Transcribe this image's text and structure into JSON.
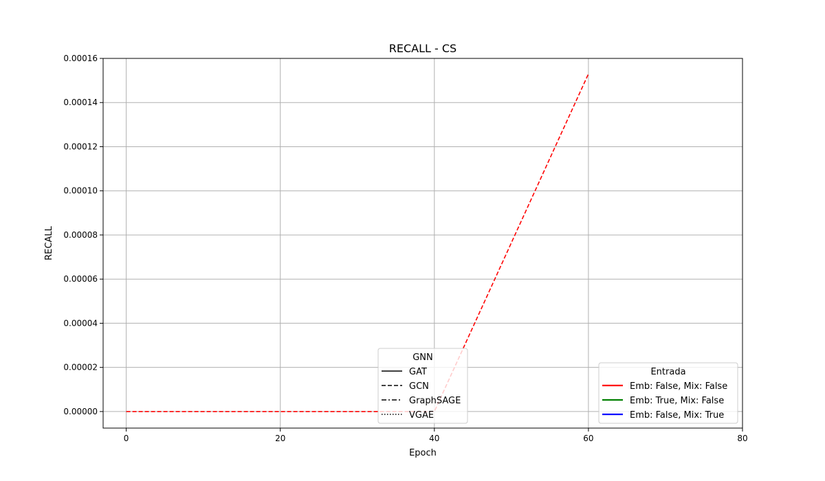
{
  "chart_data": {
    "type": "line",
    "title": "RECALL - CS",
    "xlabel": "Epoch",
    "ylabel": "RECALL",
    "xlim": [
      -3,
      80
    ],
    "ylim": [
      -7.5e-06,
      0.00016
    ],
    "xticks": [
      0,
      20,
      40,
      60,
      80
    ],
    "xtick_labels": [
      "0",
      "20",
      "40",
      "60",
      "80"
    ],
    "yticks": [
      0,
      2e-05,
      4e-05,
      6e-05,
      8e-05,
      0.0001,
      0.00012,
      0.00014,
      0.00016
    ],
    "ytick_labels": [
      "0.00000",
      "0.00002",
      "0.00004",
      "0.00006",
      "0.00008",
      "0.00010",
      "0.00012",
      "0.00014",
      "0.00016"
    ],
    "grid": true,
    "series": [
      {
        "name": "GCN — Emb: False, Mix: False",
        "color": "#ff0000",
        "dash": "dashed",
        "x": [
          0,
          40,
          60
        ],
        "y": [
          0,
          0,
          0.000153
        ]
      }
    ],
    "legends": [
      {
        "title": "GNN",
        "placement": "lower-center",
        "entries": [
          {
            "label": "GAT",
            "style": "solid",
            "color": "#000000"
          },
          {
            "label": "GCN",
            "style": "dashed",
            "color": "#000000"
          },
          {
            "label": "GraphSAGE",
            "style": "dashdot",
            "color": "#000000"
          },
          {
            "label": "VGAE",
            "style": "dotted",
            "color": "#000000"
          }
        ]
      },
      {
        "title": "Entrada",
        "placement": "lower-right",
        "entries": [
          {
            "label": "Emb: False, Mix: False",
            "style": "solid",
            "color": "#ff0000"
          },
          {
            "label": "Emb: True, Mix: False",
            "style": "solid",
            "color": "#008000"
          },
          {
            "label": "Emb: False, Mix: True",
            "style": "solid",
            "color": "#0000ff"
          }
        ]
      }
    ]
  }
}
